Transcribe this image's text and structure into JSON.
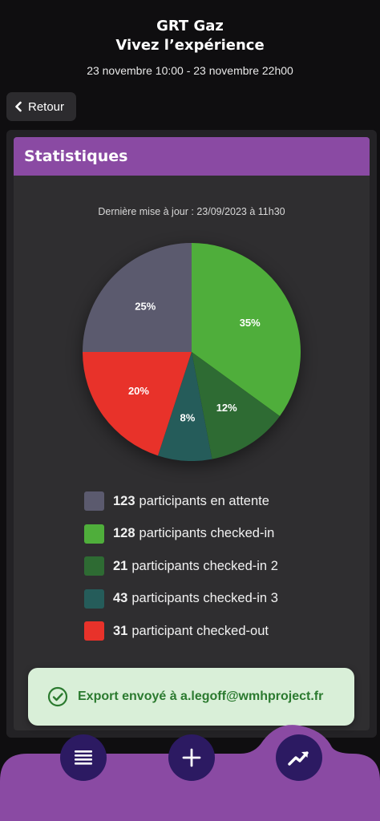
{
  "header": {
    "title_line1": "GRT Gaz",
    "title_line2": "Vivez l’expérience",
    "dates": "23 novembre 10:00 - 23 novembre 22h00"
  },
  "back_button": {
    "label": "Retour",
    "icon": "chevron-left-icon"
  },
  "card": {
    "title": "Statistiques",
    "updated": "Dernière mise à jour : 23/09/2023 à 11h30"
  },
  "chart_data": {
    "type": "pie",
    "slices": [
      {
        "label": "35%",
        "value": 35,
        "color": "#4fae3b"
      },
      {
        "label": "12%",
        "value": 12,
        "color": "#2e6b33"
      },
      {
        "label": "8%",
        "value": 8,
        "color": "#255c5a"
      },
      {
        "label": "20%",
        "value": 20,
        "color": "#e8322a"
      },
      {
        "label": "25%",
        "value": 25,
        "color": "#5b5a6e"
      }
    ],
    "legend": [
      {
        "count": "123",
        "text": "participants en attente",
        "color": "#5b5a6e"
      },
      {
        "count": "128",
        "text": "participants checked-in",
        "color": "#4fae3b"
      },
      {
        "count": "21",
        "text": "participants checked-in 2",
        "color": "#2e6b33"
      },
      {
        "count": "43",
        "text": "participants checked-in 3",
        "color": "#255c5a"
      },
      {
        "count": "31",
        "text": "participant checked-out",
        "color": "#e8322a"
      }
    ]
  },
  "toast": {
    "text": "Export envoyé à a.legoff@wmhproject.fr",
    "icon": "check-circle-icon",
    "color": "#2b7a2f"
  },
  "nav": {
    "items": [
      {
        "icon": "list-icon"
      },
      {
        "icon": "plus-icon"
      },
      {
        "icon": "trending-up-icon",
        "active": true
      }
    ],
    "bar_color": "#8a4aa3",
    "button_color": "#2c1a62"
  }
}
